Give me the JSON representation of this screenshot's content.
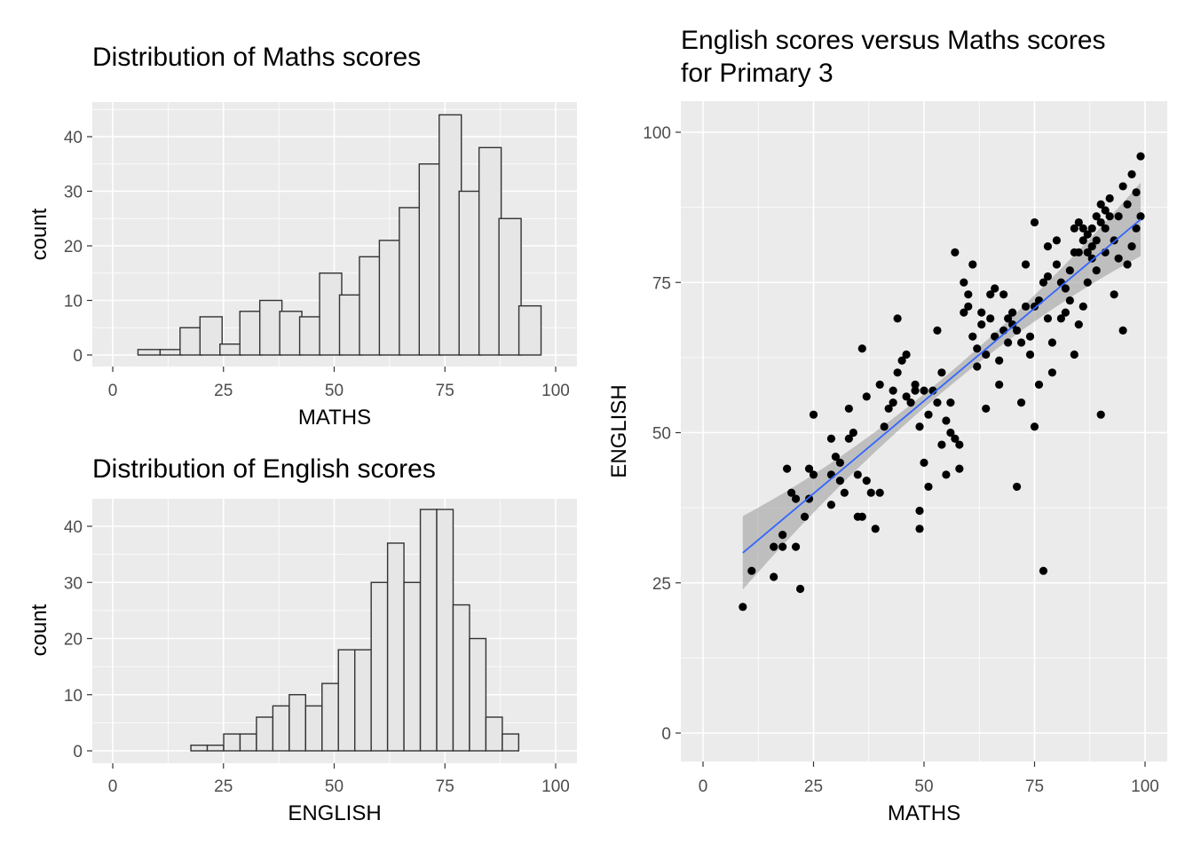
{
  "chart_data": [
    {
      "type": "bar",
      "title": "Distribution of Maths scores",
      "xlabel": "MATHS",
      "ylabel": "count",
      "xlim": [
        0,
        100
      ],
      "ylim": [
        0,
        45
      ],
      "x_ticks": [
        0,
        25,
        50,
        75,
        100
      ],
      "y_ticks": [
        0,
        10,
        20,
        30,
        40
      ],
      "grid": true,
      "bin_centers": [
        8.2,
        13.2,
        17.7,
        22.2,
        26.7,
        31.2,
        35.7,
        40.2,
        44.7,
        49.2,
        53.7,
        58.2,
        62.7,
        67.2,
        71.7,
        76.2,
        80.7,
        85.2,
        89.7,
        94.2,
        98.7
      ],
      "values": [
        1,
        1,
        5,
        7,
        2,
        8,
        10,
        8,
        7,
        15,
        11,
        18,
        21,
        27,
        35,
        44,
        30,
        38,
        25,
        9,
        0
      ]
    },
    {
      "type": "bar",
      "title": "Distribution of English scores",
      "xlabel": "ENGLISH",
      "ylabel": "count",
      "xlim": [
        0,
        100
      ],
      "ylim": [
        0,
        45
      ],
      "x_ticks": [
        0,
        25,
        50,
        75,
        100
      ],
      "y_ticks": [
        0,
        10,
        20,
        30,
        40
      ],
      "grid": true,
      "bin_centers": [
        19.5,
        23.2,
        26.9,
        30.6,
        34.3,
        38.0,
        41.7,
        45.4,
        49.1,
        52.8,
        56.5,
        60.2,
        63.9,
        67.6,
        71.3,
        75.0,
        78.7,
        82.4,
        86.1,
        89.8,
        93.5
      ],
      "values": [
        1,
        1,
        3,
        3,
        6,
        8,
        10,
        8,
        12,
        18,
        18,
        30,
        37,
        30,
        43,
        43,
        26,
        20,
        6,
        3,
        0
      ]
    },
    {
      "type": "scatter",
      "title": "English scores versus Maths scores for Primary 3",
      "xlabel": "MATHS",
      "ylabel": "ENGLISH",
      "xlim": [
        0,
        100
      ],
      "ylim": [
        0,
        100
      ],
      "x_ticks": [
        0,
        25,
        50,
        75,
        100
      ],
      "y_ticks": [
        0,
        25,
        50,
        75,
        100
      ],
      "grid": true,
      "trend_line": {
        "x": [
          9,
          99
        ],
        "y": [
          30,
          85.5
        ],
        "color": "#3366ff",
        "band_color": "#999999"
      },
      "points": [
        [
          9,
          21
        ],
        [
          11,
          27
        ],
        [
          16,
          26
        ],
        [
          16,
          31
        ],
        [
          18,
          31
        ],
        [
          18,
          33
        ],
        [
          19,
          44
        ],
        [
          20,
          40
        ],
        [
          21,
          39
        ],
        [
          21,
          31
        ],
        [
          22,
          24
        ],
        [
          23,
          36
        ],
        [
          24,
          44
        ],
        [
          24,
          39
        ],
        [
          25,
          43
        ],
        [
          25,
          53
        ],
        [
          29,
          38
        ],
        [
          29,
          43
        ],
        [
          29,
          49
        ],
        [
          30,
          46
        ],
        [
          31,
          45
        ],
        [
          31,
          42
        ],
        [
          32,
          40
        ],
        [
          33,
          54
        ],
        [
          33,
          49
        ],
        [
          34,
          50
        ],
        [
          35,
          43
        ],
        [
          35,
          36
        ],
        [
          36,
          36
        ],
        [
          36,
          64
        ],
        [
          37,
          56
        ],
        [
          37,
          42
        ],
        [
          38,
          40
        ],
        [
          39,
          34
        ],
        [
          40,
          58
        ],
        [
          40,
          40
        ],
        [
          41,
          51
        ],
        [
          42,
          54
        ],
        [
          43,
          55
        ],
        [
          43,
          57
        ],
        [
          44,
          69
        ],
        [
          44,
          60
        ],
        [
          45,
          62
        ],
        [
          46,
          63
        ],
        [
          46,
          56
        ],
        [
          47,
          55
        ],
        [
          48,
          58
        ],
        [
          48,
          57
        ],
        [
          49,
          37
        ],
        [
          49,
          34
        ],
        [
          49,
          51
        ],
        [
          50,
          45
        ],
        [
          50,
          57
        ],
        [
          51,
          41
        ],
        [
          51,
          53
        ],
        [
          52,
          57
        ],
        [
          53,
          55
        ],
        [
          53,
          67
        ],
        [
          54,
          60
        ],
        [
          54,
          48
        ],
        [
          55,
          52
        ],
        [
          55,
          43
        ],
        [
          56,
          50
        ],
        [
          56,
          55
        ],
        [
          57,
          49
        ],
        [
          57,
          80
        ],
        [
          58,
          48
        ],
        [
          58,
          44
        ],
        [
          59,
          75
        ],
        [
          59,
          70
        ],
        [
          60,
          71
        ],
        [
          60,
          73
        ],
        [
          61,
          78
        ],
        [
          61,
          66
        ],
        [
          62,
          61
        ],
        [
          62,
          64
        ],
        [
          63,
          68
        ],
        [
          63,
          70
        ],
        [
          64,
          63
        ],
        [
          64,
          54
        ],
        [
          65,
          69
        ],
        [
          65,
          73
        ],
        [
          66,
          74
        ],
        [
          66,
          66
        ],
        [
          67,
          58
        ],
        [
          67,
          62
        ],
        [
          68,
          67
        ],
        [
          68,
          73
        ],
        [
          69,
          65
        ],
        [
          69,
          69
        ],
        [
          70,
          68
        ],
        [
          70,
          70
        ],
        [
          71,
          67
        ],
        [
          71,
          41
        ],
        [
          72,
          55
        ],
        [
          72,
          65
        ],
        [
          73,
          71
        ],
        [
          73,
          78
        ],
        [
          74,
          66
        ],
        [
          74,
          63
        ],
        [
          75,
          85
        ],
        [
          75,
          71
        ],
        [
          75,
          51
        ],
        [
          76,
          58
        ],
        [
          76,
          72
        ],
        [
          77,
          75
        ],
        [
          77,
          27
        ],
        [
          78,
          69
        ],
        [
          78,
          76
        ],
        [
          78,
          81
        ],
        [
          79,
          65
        ],
        [
          79,
          60
        ],
        [
          80,
          82
        ],
        [
          80,
          78
        ],
        [
          81,
          75
        ],
        [
          81,
          69
        ],
        [
          82,
          74
        ],
        [
          82,
          70
        ],
        [
          83,
          77
        ],
        [
          83,
          72
        ],
        [
          84,
          80
        ],
        [
          84,
          63
        ],
        [
          85,
          85
        ],
        [
          85,
          68
        ],
        [
          86,
          84
        ],
        [
          86,
          71
        ],
        [
          87,
          83
        ],
        [
          87,
          75
        ],
        [
          88,
          81
        ],
        [
          88,
          79
        ],
        [
          89,
          86
        ],
        [
          89,
          77
        ],
        [
          90,
          88
        ],
        [
          90,
          53
        ],
        [
          91,
          84
        ],
        [
          91,
          80
        ],
        [
          92,
          89
        ],
        [
          92,
          86
        ],
        [
          93,
          82
        ],
        [
          93,
          73
        ],
        [
          94,
          86
        ],
        [
          94,
          79
        ],
        [
          95,
          91
        ],
        [
          95,
          67
        ],
        [
          96,
          88
        ],
        [
          96,
          78
        ],
        [
          97,
          93
        ],
        [
          97,
          81
        ],
        [
          98,
          84
        ],
        [
          98,
          90
        ],
        [
          99,
          96
        ],
        [
          99,
          86
        ],
        [
          90,
          85
        ],
        [
          91,
          87
        ],
        [
          89,
          82
        ],
        [
          88,
          84
        ],
        [
          87,
          80
        ],
        [
          86,
          82
        ],
        [
          85,
          80
        ],
        [
          84,
          84
        ]
      ]
    }
  ]
}
